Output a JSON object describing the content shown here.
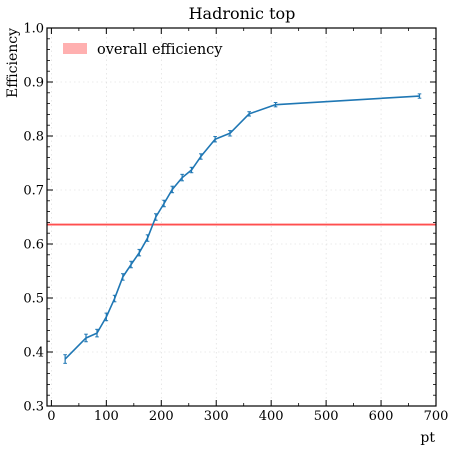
{
  "chart_data": {
    "type": "line",
    "title": "Hadronic top",
    "xlabel": "pt",
    "ylabel": "Efficiency",
    "xlim": [
      -8,
      700
    ],
    "ylim": [
      0.3,
      1.0
    ],
    "xticks": [
      0,
      100,
      200,
      300,
      400,
      500,
      600,
      700
    ],
    "yticks": [
      0.3,
      0.4,
      0.5,
      0.6,
      0.7,
      0.8,
      0.9,
      1.0
    ],
    "grid": true,
    "legend_position": "top-left",
    "series": [
      {
        "color": "#1f77b4",
        "x": [
          25,
          63,
          83,
          100,
          115,
          130,
          145,
          160,
          175,
          190,
          205,
          220,
          238,
          255,
          272,
          298,
          325,
          360,
          408,
          670
        ],
        "y": [
          0.387,
          0.426,
          0.435,
          0.465,
          0.499,
          0.539,
          0.562,
          0.584,
          0.611,
          0.65,
          0.675,
          0.701,
          0.723,
          0.737,
          0.762,
          0.794,
          0.805,
          0.841,
          0.858,
          0.874
        ],
        "err": [
          0.008,
          0.007,
          0.007,
          0.007,
          0.006,
          0.006,
          0.006,
          0.006,
          0.006,
          0.006,
          0.006,
          0.006,
          0.006,
          0.005,
          0.005,
          0.005,
          0.005,
          0.004,
          0.004,
          0.004
        ]
      }
    ],
    "reference_line": {
      "label": "overall efficiency",
      "value": 0.636,
      "color": "#ff4f4f",
      "legend_color": "#ffb0b0"
    }
  }
}
